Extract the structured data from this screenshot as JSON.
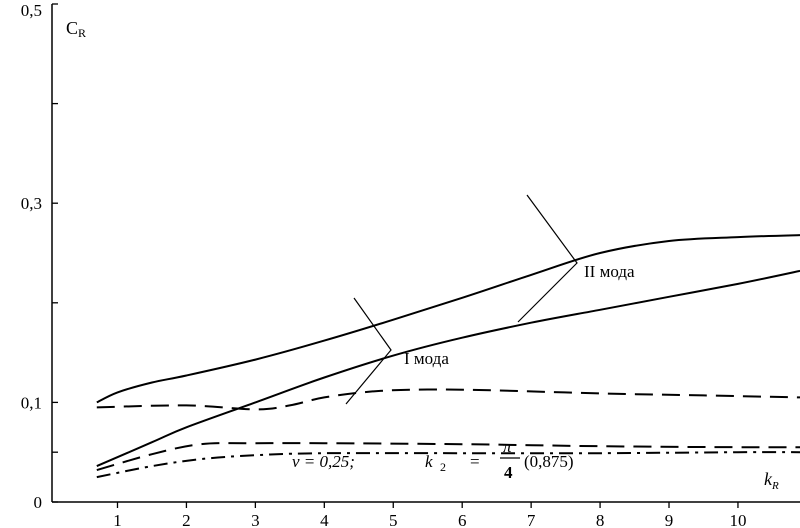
{
  "chart_data": {
    "type": "line",
    "ylabel": "C_R",
    "xlabel": "k_R",
    "xlim": [
      0.05,
      10.9
    ],
    "ylim": [
      0,
      0.5
    ],
    "x_ticks": [
      1,
      2,
      3,
      4,
      5,
      6,
      7,
      8,
      9,
      10
    ],
    "y_tick_labels": [
      {
        "value": 0,
        "label": "0"
      },
      {
        "value": 0.1,
        "label": "0,1"
      },
      {
        "value": 0.3,
        "label": "0,3"
      },
      {
        "value": 0.5,
        "label": "0,5"
      }
    ],
    "y_minor_ticks": [
      0.05,
      0.2,
      0.4
    ],
    "grid": false,
    "series": [
      {
        "mode": "II",
        "style": "solid",
        "points": [
          [
            0.7,
            0.1
          ],
          [
            1.0,
            0.11
          ],
          [
            1.5,
            0.12
          ],
          [
            2.0,
            0.127
          ],
          [
            3.0,
            0.143
          ],
          [
            4.0,
            0.162
          ],
          [
            5.0,
            0.183
          ],
          [
            6.0,
            0.205
          ],
          [
            7.0,
            0.228
          ],
          [
            8.0,
            0.25
          ],
          [
            9.0,
            0.262
          ],
          [
            10.0,
            0.266
          ],
          [
            10.9,
            0.268
          ]
        ]
      },
      {
        "mode": "I",
        "style": "solid",
        "points": [
          [
            0.7,
            0.036
          ],
          [
            1.5,
            0.06
          ],
          [
            2.0,
            0.075
          ],
          [
            3.0,
            0.1
          ],
          [
            4.0,
            0.125
          ],
          [
            5.0,
            0.147
          ],
          [
            6.0,
            0.165
          ],
          [
            7.0,
            0.18
          ],
          [
            8.0,
            0.193
          ],
          [
            9.0,
            0.206
          ],
          [
            10.0,
            0.219
          ],
          [
            10.9,
            0.232
          ]
        ]
      },
      {
        "mode": "II",
        "style": "dashed",
        "points": [
          [
            0.7,
            0.095
          ],
          [
            2.0,
            0.097
          ],
          [
            3.0,
            0.093
          ],
          [
            3.5,
            0.097
          ],
          [
            4.0,
            0.105
          ],
          [
            4.7,
            0.111
          ],
          [
            5.5,
            0.113
          ],
          [
            6.5,
            0.112
          ],
          [
            8.0,
            0.109
          ],
          [
            9.5,
            0.107
          ],
          [
            10.9,
            0.105
          ]
        ]
      },
      {
        "mode": "I",
        "style": "dashed",
        "points": [
          [
            0.7,
            0.032
          ],
          [
            1.5,
            0.048
          ],
          [
            2.2,
            0.058
          ],
          [
            3.0,
            0.059
          ],
          [
            4.0,
            0.059
          ],
          [
            6.0,
            0.058
          ],
          [
            8.0,
            0.056
          ],
          [
            10.0,
            0.055
          ],
          [
            10.9,
            0.055
          ]
        ]
      },
      {
        "style": "dash-dot",
        "points": [
          [
            0.7,
            0.025
          ],
          [
            1.5,
            0.036
          ],
          [
            2.2,
            0.043
          ],
          [
            3.0,
            0.047
          ],
          [
            4.0,
            0.049
          ],
          [
            6.0,
            0.049
          ],
          [
            8.0,
            0.049
          ],
          [
            10.0,
            0.05
          ],
          [
            10.9,
            0.05
          ]
        ]
      }
    ],
    "annotations": {
      "mode2": "II мода",
      "mode1": "I мода",
      "formula": {
        "nu_part": "ν = 0,25;",
        "k_part": "k",
        "k_sub": "2",
        "eq": "=",
        "frac_num": "π",
        "frac_den": "4",
        "paren": "(0,875)"
      }
    }
  }
}
